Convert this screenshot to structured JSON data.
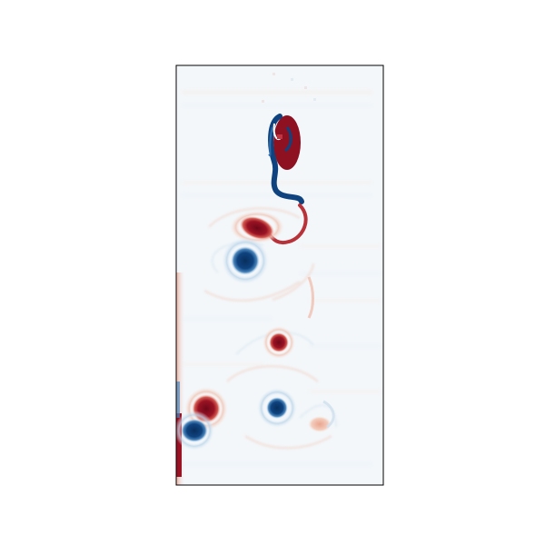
{
  "figure": {
    "description_kind": "vorticity field heatmap",
    "colormap": "RdBu_r",
    "colors": {
      "background": "#ffffff",
      "field_base": "#f3f7fa",
      "frame": "#000000",
      "positive_strong": "#7f0c1c",
      "positive_mid": "#c0353f",
      "positive_light": "#f3c0a8",
      "negative_strong": "#0d3f77",
      "negative_mid": "#2e6cab",
      "negative_light": "#c3d9ea"
    },
    "axes": {
      "ticks_visible": false,
      "labels_visible": false
    }
  }
}
